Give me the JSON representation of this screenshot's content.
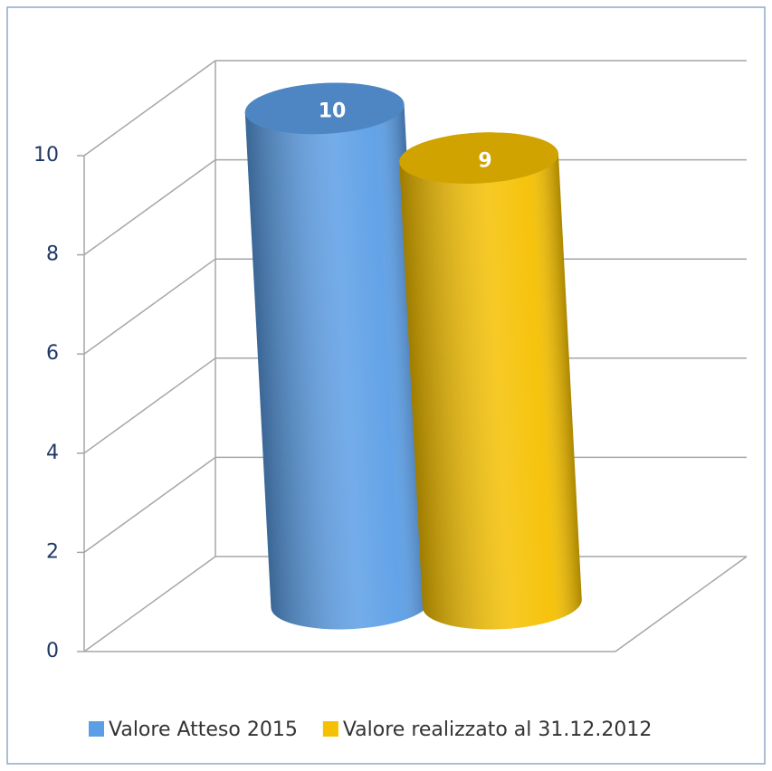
{
  "chart_data": {
    "type": "bar3d",
    "categories": [
      null
    ],
    "series": [
      {
        "name": "Valore Atteso 2015",
        "color": "#5b9ee6",
        "values": [
          10
        ]
      },
      {
        "name": "Valore realizzato al 31.12.2012",
        "color": "#f5c000",
        "values": [
          9
        ]
      }
    ],
    "ylim": [
      0,
      10
    ],
    "yticks": [
      0,
      2,
      4,
      6,
      8,
      10
    ],
    "grid": true,
    "legend": "bottom"
  }
}
